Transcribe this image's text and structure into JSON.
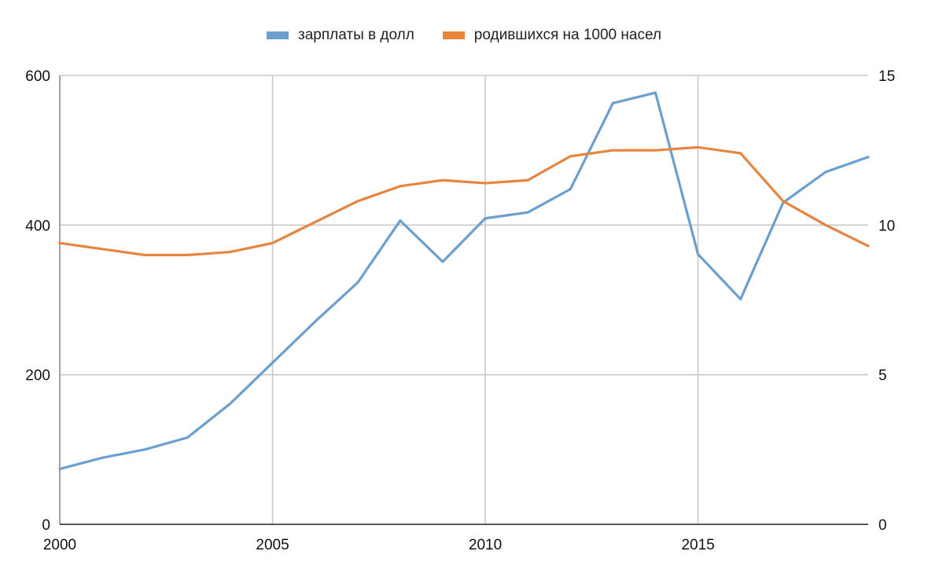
{
  "chart_data": {
    "type": "line",
    "title": "",
    "xlabel": "",
    "ylabel": "",
    "y2label": "",
    "legend_position": "top",
    "grid": true,
    "x": [
      2000,
      2001,
      2002,
      2003,
      2004,
      2005,
      2006,
      2007,
      2008,
      2009,
      2010,
      2011,
      2012,
      2013,
      2014,
      2015,
      2016,
      2017,
      2018,
      2019
    ],
    "xlim": [
      2000,
      2019
    ],
    "x_ticks": [
      2000,
      2005,
      2010,
      2015
    ],
    "x_tick_labels": [
      "2000",
      "2005",
      "2010",
      "2015"
    ],
    "ylim": [
      0,
      600
    ],
    "y_ticks": [
      0,
      200,
      400,
      600
    ],
    "y_tick_labels": [
      "0",
      "200",
      "400",
      "600"
    ],
    "y2lim": [
      0,
      15
    ],
    "y2_ticks": [
      0,
      5,
      10,
      15
    ],
    "y2_tick_labels": [
      "0",
      "5",
      "10",
      "15"
    ],
    "series": [
      {
        "name": "зарплаты в долл",
        "axis": "left",
        "color": "#6A9FD0",
        "values": [
          74,
          89,
          100,
          116,
          161,
          216,
          271,
          323,
          406,
          351,
          409,
          417,
          448,
          563,
          577,
          361,
          301,
          430,
          471,
          491
        ]
      },
      {
        "name": "родившихся на 1000 насел",
        "axis": "right",
        "color": "#E7843E",
        "values": [
          9.4,
          9.2,
          9.0,
          9.0,
          9.1,
          9.4,
          10.1,
          10.8,
          11.3,
          11.5,
          11.4,
          11.5,
          12.3,
          12.5,
          12.5,
          12.6,
          12.4,
          10.8,
          10.0,
          9.3
        ]
      }
    ]
  }
}
